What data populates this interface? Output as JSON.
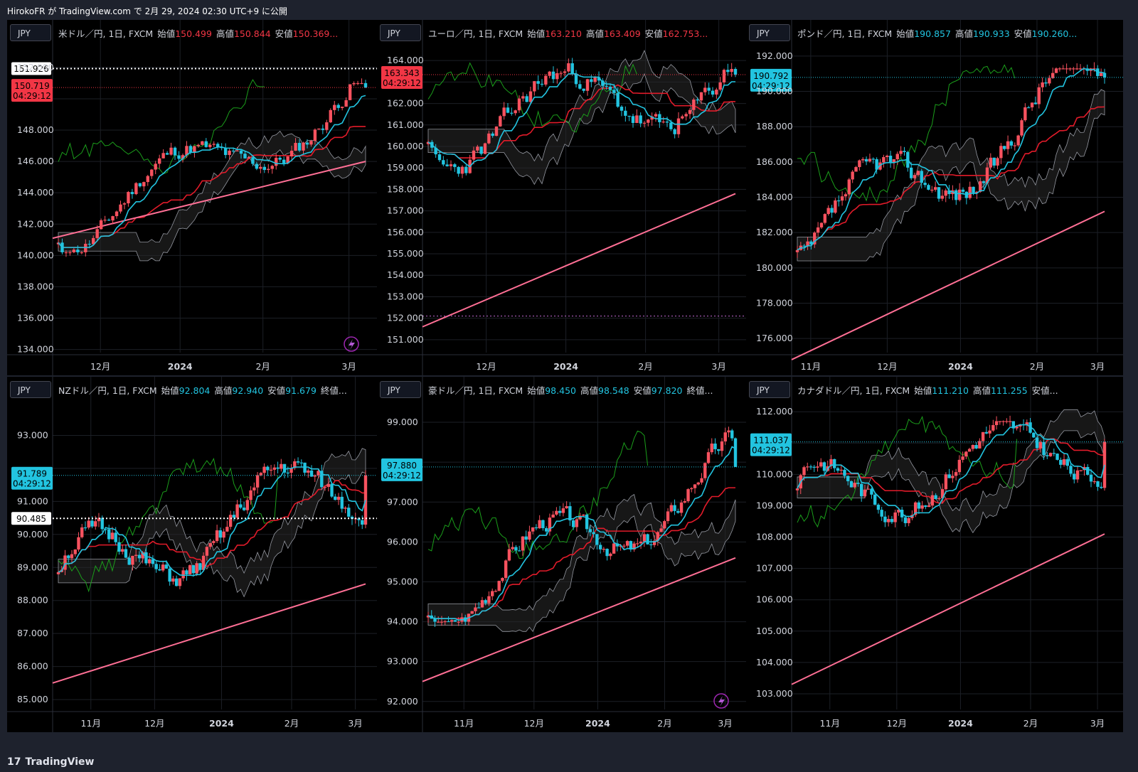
{
  "header": {
    "text": "HirokoFR が TradingView.com で 2月 29, 2024 02:30 UTC+9 に公開"
  },
  "footer": {
    "brand": "TradingView",
    "logo_glyph": "17"
  },
  "colors": {
    "up": "#f7525f",
    "down": "#22c4e0",
    "kijun": "#e21b2a",
    "tenkan": "#22c4e0",
    "chikou": "#1b9e1b",
    "ema": "#ff6f95",
    "cloud": "#9598a1",
    "grid": "#1c1f26"
  },
  "chart_data": [
    {
      "type": "candlestick",
      "currency": "JPY",
      "title": "米ドル／円, 1日, FXCM",
      "legend": [
        {
          "label": "始値",
          "value": "150.499",
          "color": "red"
        },
        {
          "label": "高値",
          "value": "150.844",
          "color": "red"
        },
        {
          "label": "安値",
          "value": "150.369...",
          "color": "red"
        }
      ],
      "y_ticks": [
        "152.000",
        "150.000",
        "148.000",
        "146.000",
        "144.000",
        "142.000",
        "140.000",
        "138.000",
        "136.000",
        "134.000"
      ],
      "ylim": [
        133.8,
        153.4
      ],
      "x_labels": [
        {
          "t": "12月",
          "f": 0.15
        },
        {
          "t": "2024",
          "f": 0.4
        },
        {
          "t": "2月",
          "f": 0.66
        },
        {
          "t": "3月",
          "f": 0.93
        }
      ],
      "price": {
        "value": "150.719",
        "time": "04:29:12",
        "color": "#f23645"
      },
      "extra_line": {
        "value": "151.926",
        "style": "white-dotted"
      },
      "start": 141.3,
      "end": 150.72,
      "low": 140.2,
      "high": 151.0,
      "ema": [
        141.1,
        146.0
      ],
      "n": 80,
      "seed": 11,
      "lightning": true
    },
    {
      "type": "candlestick",
      "currency": "JPY",
      "title": "ユーロ／円, 1日, FXCM",
      "legend": [
        {
          "label": "始値",
          "value": "163.210",
          "color": "red"
        },
        {
          "label": "高値",
          "value": "163.409",
          "color": "red"
        },
        {
          "label": "安値",
          "value": "162.753...",
          "color": "red"
        }
      ],
      "y_ticks": [
        "164.000",
        "163.000",
        "162.000",
        "161.000",
        "160.000",
        "159.000",
        "158.000",
        "157.000",
        "156.000",
        "155.000",
        "154.000",
        "153.000",
        "152.000",
        "151.000"
      ],
      "ylim": [
        150.4,
        164.7
      ],
      "x_labels": [
        {
          "t": "12月",
          "f": 0.2
        },
        {
          "t": "2024",
          "f": 0.45
        },
        {
          "t": "2月",
          "f": 0.7
        },
        {
          "t": "3月",
          "f": 0.93
        }
      ],
      "price": {
        "value": "163.343",
        "time": "04:29:12",
        "color": "#f23645"
      },
      "extra_line": {
        "value": "152.100",
        "style": "purple-dotted"
      },
      "start": 160.5,
      "end": 163.34,
      "low": 154.2,
      "high": 164.1,
      "ema": [
        151.6,
        157.8
      ],
      "n": 82,
      "seed": 23,
      "lightning": false
    },
    {
      "type": "candlestick",
      "currency": "JPY",
      "title": "ポンド／円, 1日, FXCM",
      "legend": [
        {
          "label": "始値",
          "value": "190.857",
          "color": "cyan"
        },
        {
          "label": "高値",
          "value": "190.933",
          "color": "cyan"
        },
        {
          "label": "安値",
          "value": "190.260...",
          "color": "cyan"
        }
      ],
      "y_ticks": [
        "192.000",
        "190.000",
        "188.000",
        "186.000",
        "184.000",
        "182.000",
        "180.000",
        "178.000",
        "176.000"
      ],
      "ylim": [
        175.2,
        192.6
      ],
      "x_labels": [
        {
          "t": "11月",
          "f": 0.06
        },
        {
          "t": "12月",
          "f": 0.3
        },
        {
          "t": "2024",
          "f": 0.53
        },
        {
          "t": "2月",
          "f": 0.77
        },
        {
          "t": "3月",
          "f": 0.96
        }
      ],
      "price": {
        "value": "190.792",
        "time": "04:29:12",
        "color": "#22c4e0"
      },
      "extra_line": null,
      "start": 181.5,
      "end": 190.79,
      "low": 179.0,
      "high": 191.3,
      "ema": [
        174.8,
        183.2
      ],
      "n": 90,
      "seed": 37,
      "lightning": false
    },
    {
      "type": "candlestick",
      "currency": "JPY",
      "title": "NZドル／円, 1日, FXCM",
      "legend": [
        {
          "label": "始値",
          "value": "92.804",
          "color": "cyan"
        },
        {
          "label": "高値",
          "value": "92.940",
          "color": "cyan"
        },
        {
          "label": "安値",
          "value": "91.679",
          "color": "cyan"
        },
        {
          "label": "終値...",
          "value": "",
          "color": "none"
        }
      ],
      "y_ticks": [
        "93.000",
        "92.000",
        "91.000",
        "90.000",
        "89.000",
        "88.000",
        "87.000",
        "86.000",
        "85.000"
      ],
      "ylim": [
        84.7,
        94.0
      ],
      "x_labels": [
        {
          "t": "11月",
          "f": 0.12
        },
        {
          "t": "12月",
          "f": 0.32
        },
        {
          "t": "2024",
          "f": 0.53
        },
        {
          "t": "2月",
          "f": 0.75
        },
        {
          "t": "3月",
          "f": 0.95
        }
      ],
      "price": {
        "value": "91.789",
        "time": "04:29:12",
        "color": "#22c4e0"
      },
      "extra_line": {
        "value": "90.485",
        "style": "white-dotted"
      },
      "start": 88.6,
      "end": 91.79,
      "low": 86.8,
      "high": 93.3,
      "ema": [
        85.5,
        88.5
      ],
      "n": 92,
      "seed": 51,
      "lightning": false
    },
    {
      "type": "candlestick",
      "currency": "JPY",
      "title": "豪ドル／円, 1日, FXCM",
      "legend": [
        {
          "label": "始値",
          "value": "98.450",
          "color": "cyan"
        },
        {
          "label": "高値",
          "value": "98.548",
          "color": "cyan"
        },
        {
          "label": "安値",
          "value": "97.820",
          "color": "cyan"
        },
        {
          "label": "終値...",
          "value": "",
          "color": "none"
        }
      ],
      "y_ticks": [
        "99.000",
        "98.000",
        "97.000",
        "96.000",
        "95.000",
        "94.000",
        "93.000",
        "92.000"
      ],
      "ylim": [
        91.8,
        99.5
      ],
      "x_labels": [
        {
          "t": "11月",
          "f": 0.13
        },
        {
          "t": "12月",
          "f": 0.35
        },
        {
          "t": "2024",
          "f": 0.55
        },
        {
          "t": "2月",
          "f": 0.76
        },
        {
          "t": "3月",
          "f": 0.95
        }
      ],
      "price": {
        "value": "97.880",
        "time": "04:29:12",
        "color": "#22c4e0"
      },
      "extra_line": null,
      "start": 94.4,
      "end": 97.88,
      "low": 94.0,
      "high": 98.9,
      "ema": [
        92.5,
        95.6
      ],
      "n": 92,
      "seed": 67,
      "lightning": true
    },
    {
      "type": "candlestick",
      "currency": "JPY",
      "title": "カナダドル／円, 1日, FXCM",
      "legend": [
        {
          "label": "始値",
          "value": "111.210",
          "color": "cyan"
        },
        {
          "label": "高値",
          "value": "111.255",
          "color": "cyan"
        },
        {
          "label": "安値...",
          "value": "",
          "color": "none"
        }
      ],
      "y_ticks": [
        "112.000",
        "111.000",
        "110.000",
        "109.000",
        "108.000",
        "107.000",
        "106.000",
        "105.000",
        "104.000",
        "103.000"
      ],
      "ylim": [
        102.5,
        112.3
      ],
      "x_labels": [
        {
          "t": "11月",
          "f": 0.12
        },
        {
          "t": "12月",
          "f": 0.33
        },
        {
          "t": "2024",
          "f": 0.53
        },
        {
          "t": "2月",
          "f": 0.75
        },
        {
          "t": "3月",
          "f": 0.96
        }
      ],
      "price": {
        "value": "111.037",
        "time": "04:29:12",
        "color": "#22c4e0"
      },
      "extra_line": null,
      "start": 109.3,
      "end": 111.04,
      "low": 105.6,
      "high": 111.7,
      "ema": [
        103.3,
        108.1
      ],
      "n": 92,
      "seed": 83,
      "lightning": false
    }
  ]
}
